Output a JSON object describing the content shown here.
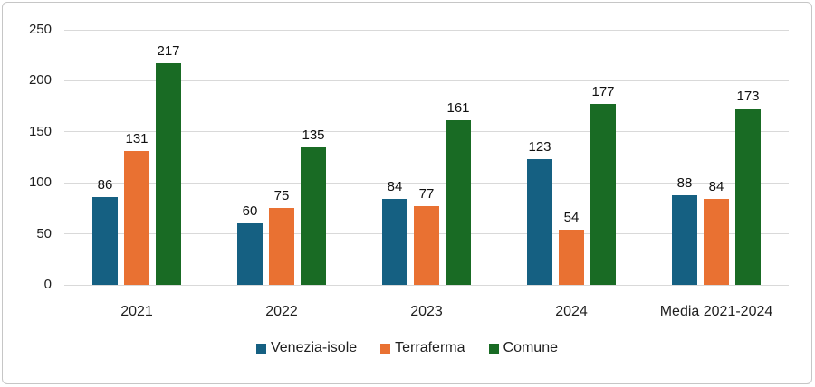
{
  "chart_data": {
    "type": "bar",
    "title": "",
    "xlabel": "",
    "ylabel": "",
    "categories": [
      "2021",
      "2022",
      "2023",
      "2024",
      "Media 2021-2024"
    ],
    "series": [
      {
        "name": "Venezia-isole",
        "color": "#156082",
        "values": [
          86,
          60,
          84,
          123,
          88
        ]
      },
      {
        "name": "Terraferma",
        "color": "#E97132",
        "values": [
          131,
          75,
          77,
          54,
          84
        ]
      },
      {
        "name": "Comune",
        "color": "#196B24",
        "values": [
          217,
          135,
          161,
          177,
          173
        ]
      }
    ],
    "ylim": [
      0,
      250
    ],
    "yticks": [
      0,
      50,
      100,
      150,
      200,
      250
    ],
    "grid": true,
    "data_labels": true,
    "legend_position": "bottom",
    "gridline_color": "#D9D9D9",
    "frame_border_color": "#C6C6C6",
    "text_color": "#1F1F1F"
  }
}
